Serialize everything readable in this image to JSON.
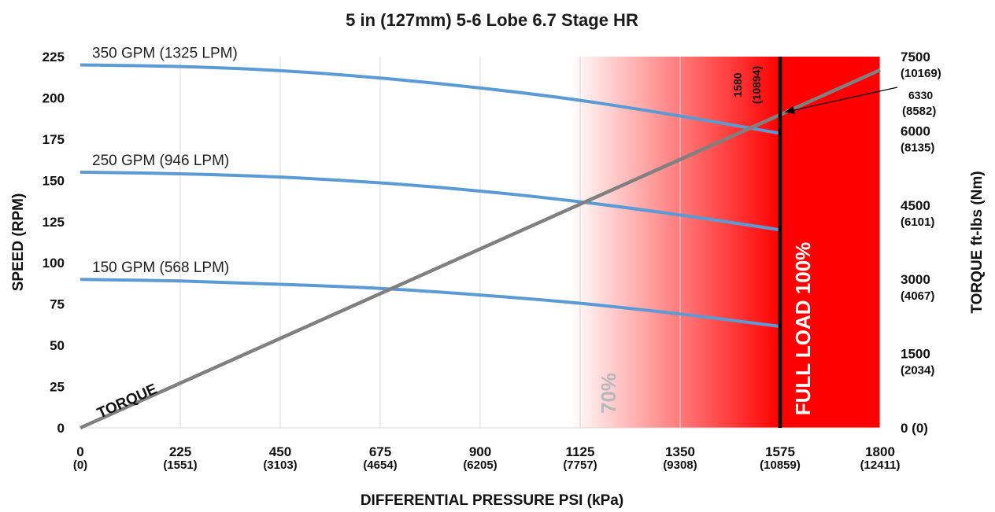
{
  "chart_data": {
    "type": "line",
    "title": "5 in (127mm) 5-6 Lobe 6.7 Stage HR",
    "xlabel": "DIFFERENTIAL PRESSURE PSI (kPa)",
    "ylabel": "SPEED (RPM)",
    "y2label": "TORQUE ft-lbs (Nm)",
    "xlim": [
      0,
      1800
    ],
    "ylim": [
      0,
      225
    ],
    "y2lim": [
      0,
      7500
    ],
    "grid": "vertical",
    "x_ticks": [
      {
        "value": 0,
        "label": "0",
        "sub": "(0)"
      },
      {
        "value": 225,
        "label": "225",
        "sub": "(1551)"
      },
      {
        "value": 450,
        "label": "450",
        "sub": "(3103)"
      },
      {
        "value": 675,
        "label": "675",
        "sub": "(4654)"
      },
      {
        "value": 900,
        "label": "900",
        "sub": "(6205)"
      },
      {
        "value": 1125,
        "label": "1125",
        "sub": "(7757)"
      },
      {
        "value": 1350,
        "label": "1350",
        "sub": "(9308)"
      },
      {
        "value": 1575,
        "label": "1575",
        "sub": "(10859)"
      },
      {
        "value": 1800,
        "label": "1800",
        "sub": "(12411)"
      }
    ],
    "y_ticks": [
      0,
      25,
      50,
      75,
      100,
      125,
      150,
      175,
      200,
      225
    ],
    "y2_ticks": [
      {
        "value": 0,
        "label": "0 (0)",
        "sub": ""
      },
      {
        "value": 1500,
        "label": "1500",
        "sub": "(2034)"
      },
      {
        "value": 3000,
        "label": "3000",
        "sub": "(4067)"
      },
      {
        "value": 4500,
        "label": "4500",
        "sub": "(6101)"
      },
      {
        "value": 6000,
        "label": "6000",
        "sub": "(8135)"
      },
      {
        "value": 7500,
        "label": "7500",
        "sub": "(10169)"
      }
    ],
    "speed_series": [
      {
        "name": "350 GPM (1325 LPM)",
        "color": "#5b9bd5",
        "points": [
          [
            0,
            220
          ],
          [
            225,
            219
          ],
          [
            450,
            216.5
          ],
          [
            675,
            212
          ],
          [
            900,
            206
          ],
          [
            1125,
            198.5
          ],
          [
            1350,
            189
          ],
          [
            1575,
            178.5
          ]
        ]
      },
      {
        "name": "250 GPM (946 LPM)",
        "color": "#5b9bd5",
        "points": [
          [
            0,
            155
          ],
          [
            225,
            154
          ],
          [
            450,
            152
          ],
          [
            675,
            148.5
          ],
          [
            900,
            143.5
          ],
          [
            1125,
            137
          ],
          [
            1350,
            129
          ],
          [
            1575,
            120
          ]
        ]
      },
      {
        "name": "150 GPM (568 LPM)",
        "color": "#5b9bd5",
        "points": [
          [
            0,
            90
          ],
          [
            225,
            89
          ],
          [
            450,
            87
          ],
          [
            675,
            84.5
          ],
          [
            900,
            80.5
          ],
          [
            1125,
            75.5
          ],
          [
            1350,
            69
          ],
          [
            1575,
            61.5
          ]
        ]
      }
    ],
    "torque_series": {
      "name": "TORQUE",
      "color": "#808080",
      "points": [
        [
          0,
          0
        ],
        [
          1800,
          7230
        ]
      ]
    },
    "zones": {
      "fade_start": 1125,
      "full_load": 1575,
      "color": "#ff0000",
      "label_70": "70%",
      "label_full": "FULL LOAD 100%"
    },
    "annotations": {
      "full_load_psi": "1580",
      "full_load_kpa": "(10894)",
      "torque_at_full_load": "6330",
      "torque_at_full_load_nm": "(8582)",
      "torque_at_full_load_value": 6330
    }
  }
}
